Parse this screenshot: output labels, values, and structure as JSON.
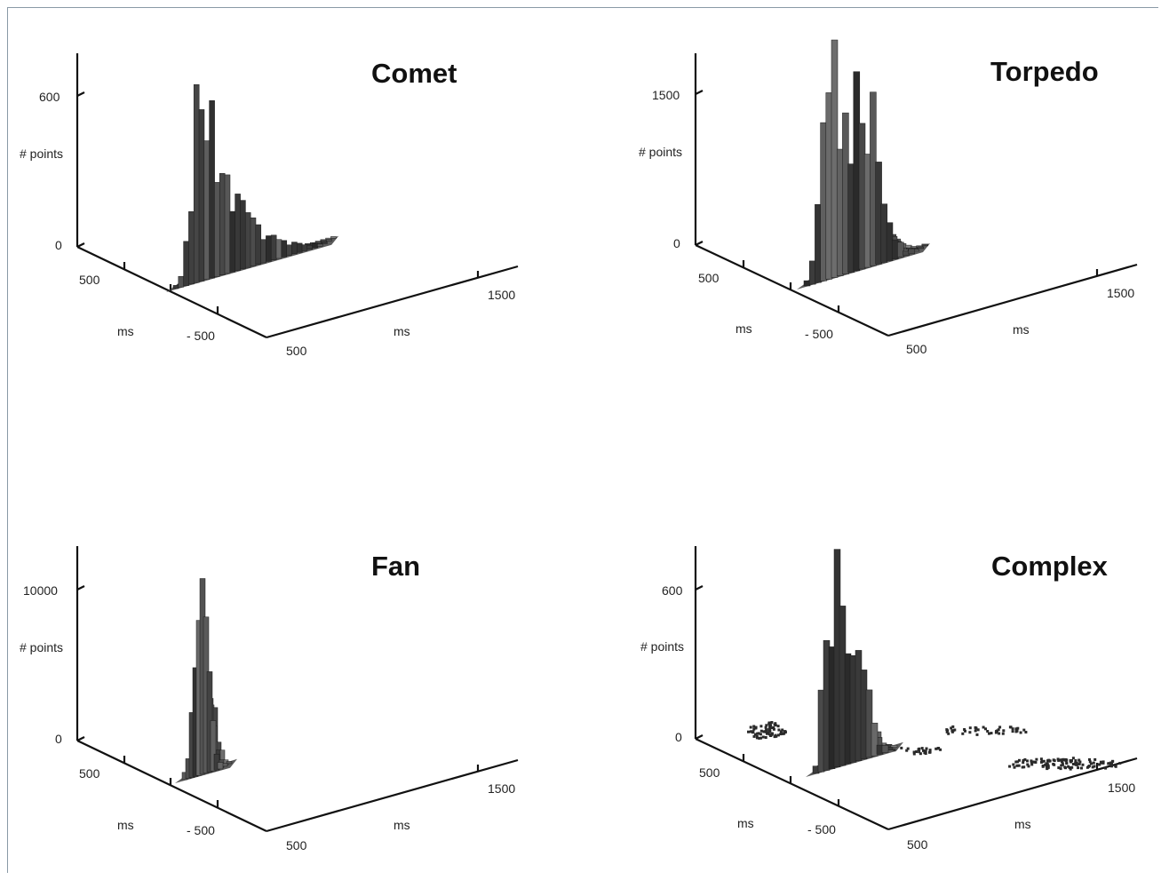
{
  "chart_data": [
    {
      "type": "bar3d",
      "title": "Comet",
      "zlabel": "# points",
      "ylabel": "ms",
      "xlabel": "ms",
      "z_ticks": [
        "600",
        "0"
      ],
      "y_ticks": [
        "500",
        "- 500"
      ],
      "x_ticks": [
        "500",
        "1500"
      ],
      "zlim": [
        0,
        700
      ],
      "peak": 645,
      "distribution": "sharp peak near origin with long tail toward +x",
      "profile": [
        0.02,
        0.06,
        0.18,
        0.42,
        0.78,
        1.0,
        0.86,
        0.7,
        0.58,
        0.49,
        0.42,
        0.36,
        0.31,
        0.27,
        0.23,
        0.2,
        0.17,
        0.15,
        0.13,
        0.11,
        0.09,
        0.08,
        0.06,
        0.05,
        0.04,
        0.03,
        0.02,
        0.02,
        0.01
      ]
    },
    {
      "type": "bar3d",
      "title": "Torpedo",
      "zlabel": "# points",
      "ylabel": "ms",
      "xlabel": "ms",
      "z_ticks": [
        "1500",
        "0"
      ],
      "y_ticks": [
        "500",
        "- 500"
      ],
      "x_ticks": [
        "500",
        "1500"
      ],
      "zlim": [
        0,
        1800
      ],
      "peak": 1580,
      "distribution": "elongated cluster with several tall peaks",
      "profile": [
        0.03,
        0.12,
        0.35,
        0.62,
        0.84,
        1.0,
        0.7,
        0.92,
        0.6,
        0.96,
        0.72,
        0.55,
        0.8,
        0.45,
        0.33,
        0.22,
        0.12,
        0.06,
        0.03,
        0.02
      ]
    },
    {
      "type": "bar3d",
      "title": "Fan",
      "zlabel": "# points",
      "ylabel": "ms",
      "xlabel": "ms",
      "z_ticks": [
        "10000",
        "0"
      ],
      "y_ticks": [
        "500",
        "- 500"
      ],
      "x_ticks": [
        "500",
        "1500"
      ],
      "zlim": [
        0,
        12000
      ],
      "peak": 11000,
      "distribution": "single narrow spike",
      "profile": [
        0.03,
        0.1,
        0.32,
        0.62,
        0.9,
        1.0,
        0.8,
        0.5,
        0.22,
        0.08,
        0.03
      ]
    },
    {
      "type": "bar3d",
      "title": "Complex",
      "zlabel": "# points",
      "ylabel": "ms",
      "xlabel": "ms",
      "z_ticks": [
        "600",
        "0"
      ],
      "y_ticks": [
        "500",
        "- 500"
      ],
      "x_ticks": [
        "500",
        "1500"
      ],
      "zlim": [
        0,
        700
      ],
      "peak": 645,
      "distribution": "main peaked cluster plus scattered secondary clusters",
      "profile": [
        0.05,
        0.35,
        0.6,
        0.5,
        1.0,
        0.85,
        0.55,
        0.7,
        0.45,
        0.5,
        0.3,
        0.15,
        0.06,
        0.03
      ]
    }
  ]
}
